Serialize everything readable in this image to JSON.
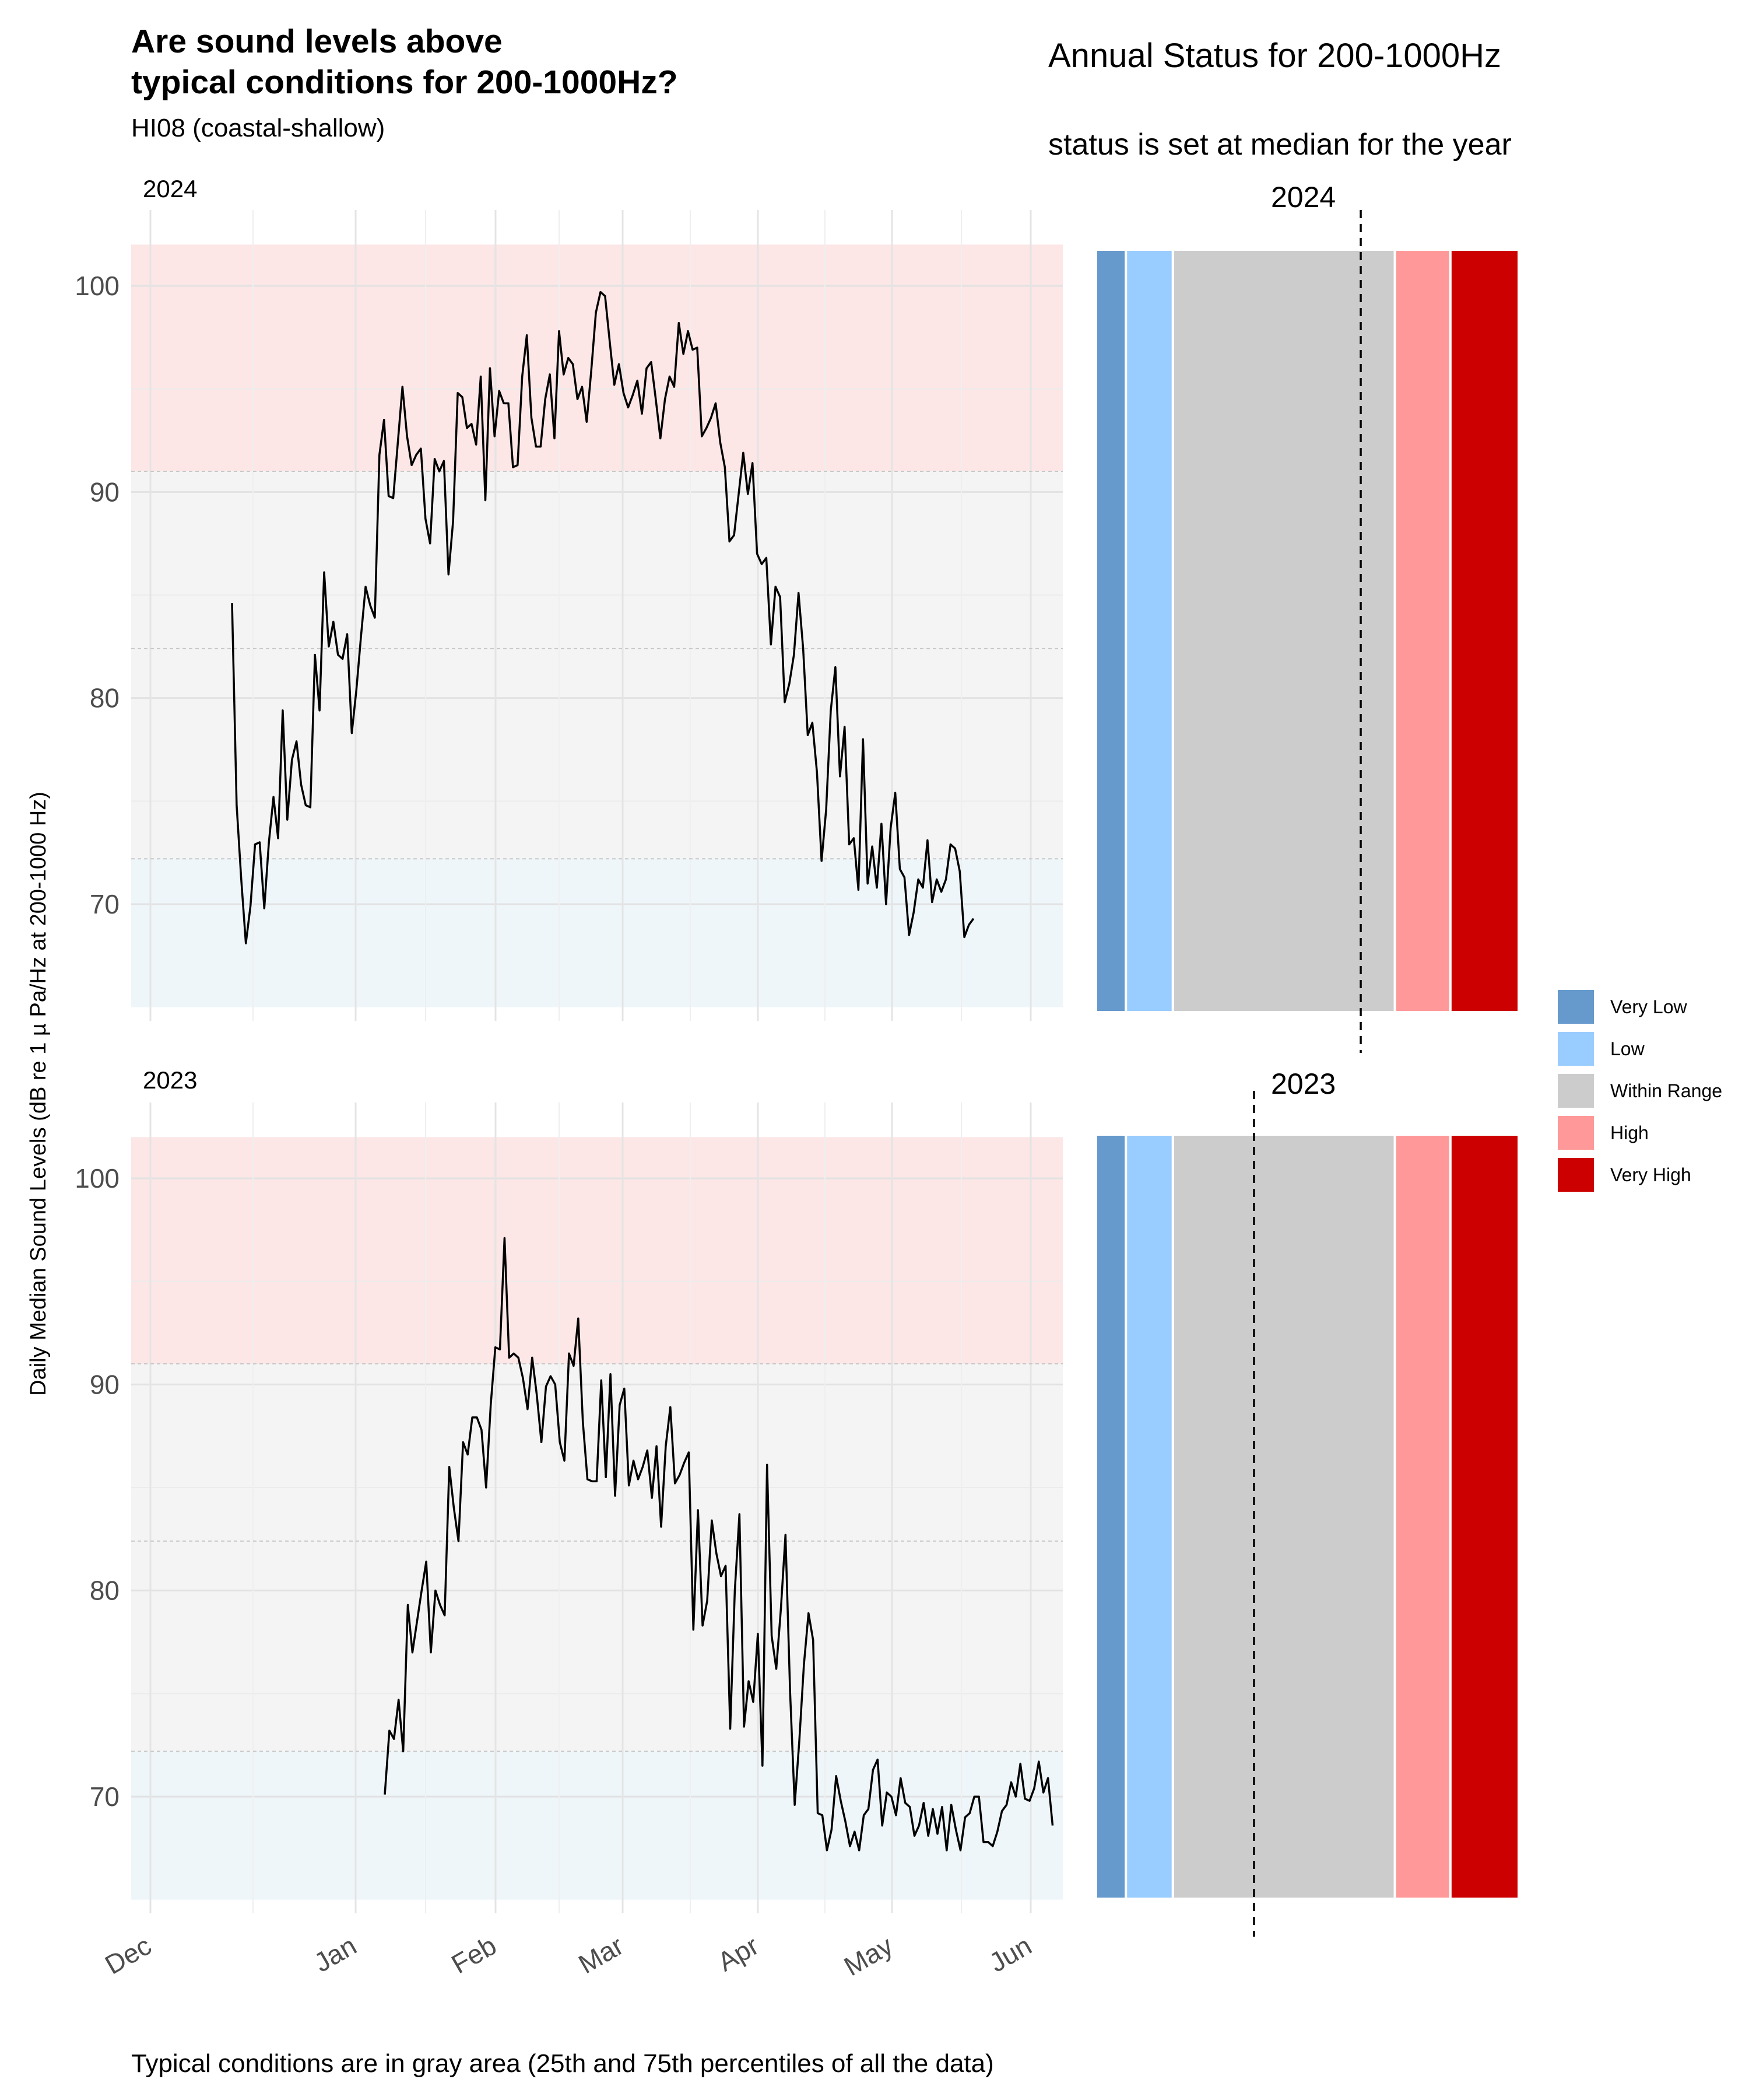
{
  "header": {
    "title_line1": "Are sound levels above",
    "title_line2": "typical conditions for 200-1000Hz?",
    "subtitle": "HI08 (coastal-shallow)"
  },
  "right_header": {
    "title": "Annual Status for 200-1000Hz",
    "subtitle": "status is set at median for the year"
  },
  "caption": "Typical conditions are in gray area (25th and 75th percentiles of all the data)",
  "legend": {
    "items": [
      {
        "label": "Very Low",
        "color": "#6699CC"
      },
      {
        "label": "Low",
        "color": "#99CCFF"
      },
      {
        "label": "Within Range",
        "color": "#CCCCCC"
      },
      {
        "label": "High",
        "color": "#FF9999"
      },
      {
        "label": "Very High",
        "color": "#CC0000"
      }
    ]
  },
  "chart_data": [
    {
      "type": "line",
      "facet": "2024",
      "ylabel": "Daily Median Sound Levels (dB re 1 µ Pa/Hz at 200-1000 Hz)",
      "xlabel": "",
      "x_tick_labels": [
        "Dec",
        "Jan",
        "Feb",
        "Mar",
        "Apr",
        "May",
        "Jun"
      ],
      "y_ticks": [
        70,
        80,
        90,
        100
      ],
      "ylim": [
        65,
        102
      ],
      "bands": {
        "low_below": 72.2,
        "typical": [
          72.2,
          91.0
        ],
        "high_above": 91.0,
        "median_line": 82.4
      },
      "band_colors": {
        "low": "#EEF6FA",
        "typical": "#F4F4F4",
        "high": "#FCE6E6"
      },
      "x_start_day_label": "Dec 6",
      "values": [
        84.6,
        74.8,
        71.2,
        68.1,
        69.9,
        72.9,
        73.0,
        69.8,
        73.0,
        75.2,
        73.2,
        79.4,
        74.1,
        77.0,
        77.9,
        75.8,
        74.8,
        74.7,
        82.1,
        79.4,
        86.1,
        82.5,
        83.7,
        82.1,
        81.9,
        83.1,
        78.3,
        80.4,
        83.0,
        85.4,
        84.5,
        83.9,
        91.8,
        93.5,
        89.8,
        89.7,
        92.4,
        95.1,
        92.7,
        91.3,
        91.8,
        92.1,
        88.7,
        87.5,
        91.6,
        91.0,
        91.5,
        86.0,
        88.6,
        94.8,
        94.6,
        93.1,
        93.3,
        92.3,
        95.6,
        89.6,
        96.0,
        92.7,
        94.9,
        94.3,
        94.3,
        91.2,
        91.3,
        95.6,
        97.6,
        93.6,
        92.2,
        92.2,
        94.5,
        95.7,
        92.6,
        97.8,
        95.7,
        96.5,
        96.2,
        94.5,
        95.1,
        93.4,
        95.9,
        98.7,
        99.7,
        99.5,
        97.3,
        95.2,
        96.2,
        94.8,
        94.1,
        94.7,
        95.4,
        93.8,
        96.0,
        96.3,
        94.5,
        92.6,
        94.5,
        95.6,
        95.1,
        98.2,
        96.7,
        97.8,
        96.9,
        97.0,
        92.7,
        93.1,
        93.6,
        94.3,
        92.4,
        91.2,
        87.6,
        87.9,
        89.9,
        91.9,
        89.9,
        91.4,
        87.0,
        86.5,
        86.8,
        82.6,
        85.4,
        84.9,
        79.8,
        80.7,
        82.1,
        85.1,
        82.4,
        78.2,
        78.8,
        76.4,
        72.1,
        74.6,
        79.4,
        81.5,
        76.2,
        78.6,
        72.9,
        73.2,
        70.7,
        78.0,
        71.0,
        72.8,
        70.8,
        73.9,
        70.0,
        73.7,
        75.4,
        71.7,
        71.3,
        68.5,
        69.6,
        71.2,
        70.8,
        73.1,
        70.1,
        71.2,
        70.6,
        71.2,
        72.9,
        72.7,
        71.6,
        68.4,
        69.0,
        69.3
      ]
    },
    {
      "type": "line",
      "facet": "2023",
      "ylabel": "Daily Median Sound Levels (dB re 1 µ Pa/Hz at 200-1000 Hz)",
      "xlabel": "",
      "x_tick_labels": [
        "Dec",
        "Jan",
        "Feb",
        "Mar",
        "Apr",
        "May",
        "Jun"
      ],
      "y_ticks": [
        70,
        80,
        90,
        100
      ],
      "ylim": [
        65,
        102
      ],
      "bands": {
        "low_below": 72.2,
        "typical": [
          72.2,
          91.0
        ],
        "high_above": 91.0,
        "median_line": 82.4
      },
      "band_colors": {
        "low": "#EEF6FA",
        "typical": "#F4F4F4",
        "high": "#FCE6E6"
      },
      "x_start_day_label": "Jan 7",
      "values": [
        70.1,
        73.2,
        72.8,
        74.7,
        72.2,
        79.3,
        77.0,
        78.5,
        80.0,
        81.4,
        77.0,
        80.0,
        79.3,
        78.8,
        86.0,
        84.0,
        82.4,
        87.2,
        86.6,
        88.4,
        88.4,
        87.8,
        85.0,
        89.0,
        91.8,
        91.7,
        97.1,
        91.3,
        91.5,
        91.3,
        90.3,
        88.8,
        91.3,
        89.5,
        87.2,
        89.9,
        90.4,
        90.0,
        87.2,
        86.3,
        91.5,
        90.9,
        93.2,
        88.2,
        85.4,
        85.3,
        85.3,
        90.2,
        85.5,
        90.5,
        84.6,
        89.0,
        89.8,
        85.1,
        86.3,
        85.4,
        86.0,
        86.8,
        84.5,
        87.0,
        83.1,
        87.0,
        88.9,
        85.2,
        85.6,
        86.2,
        86.7,
        78.1,
        83.9,
        78.3,
        79.5,
        83.4,
        81.8,
        80.7,
        81.2,
        73.3,
        80.0,
        83.7,
        73.4,
        75.6,
        74.6,
        77.9,
        71.5,
        86.1,
        77.8,
        76.2,
        79.1,
        82.7,
        75.1,
        69.6,
        72.7,
        76.4,
        78.9,
        77.6,
        69.2,
        69.1,
        67.4,
        68.4,
        71.0,
        69.8,
        68.8,
        67.6,
        68.3,
        67.4,
        69.1,
        69.4,
        71.3,
        71.8,
        68.6,
        70.2,
        70.0,
        69.1,
        70.9,
        69.7,
        69.5,
        68.1,
        68.6,
        69.7,
        68.1,
        69.4,
        68.2,
        69.5,
        67.4,
        69.6,
        68.4,
        67.4,
        69.0,
        69.2,
        70.0,
        70.0,
        67.8,
        67.8,
        67.6,
        68.3,
        69.3,
        69.6,
        70.7,
        70.0,
        71.6,
        69.9,
        69.8,
        70.4,
        71.7,
        70.2,
        70.9,
        68.6
      ]
    },
    {
      "type": "bar",
      "facet": "2024",
      "orientation": "horizontal-stacked",
      "categories": [
        "Very Low",
        "Low",
        "Within Range",
        "High",
        "Very High"
      ],
      "values": [
        7,
        11,
        52,
        13,
        16
      ],
      "median_marker": 62
    },
    {
      "type": "bar",
      "facet": "2023",
      "orientation": "horizontal-stacked",
      "categories": [
        "Very Low",
        "Low",
        "Within Range",
        "High",
        "Very High"
      ],
      "values": [
        7,
        11,
        52,
        13,
        16
      ],
      "median_marker": 37
    }
  ]
}
